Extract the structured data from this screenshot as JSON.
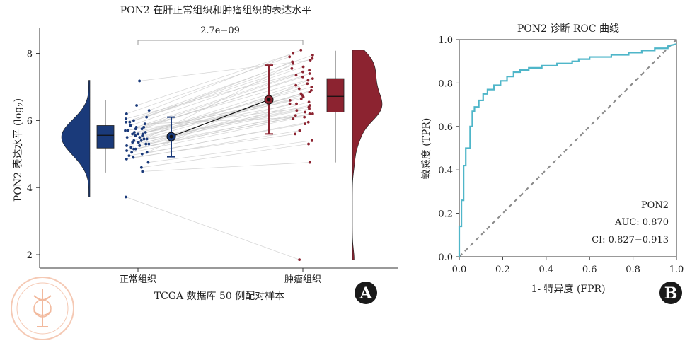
{
  "panel_a": {
    "title": "PON2 在肝正常组织和肿瘤组织的表达水平",
    "xlabel": "TCGA 数据库 50 例配对样本",
    "ylabel": "PON2 表达水平 (log2)",
    "ylabel_main": "PON2 表达水平 (log",
    "ylabel_sub": "2",
    "ylabel_close": ")",
    "pvalue": "2.7e−09",
    "panel_label": "A",
    "colors": {
      "normal": "#1a3a7a",
      "tumor": "#8c2330"
    }
  },
  "panel_b": {
    "title": "PON2 诊断 ROC 曲线",
    "xlabel": "1- 特异度 (FPR)",
    "ylabel": "敏感度 (TPR)",
    "legend_name": "PON2",
    "auc_text": "AUC: 0.870",
    "ci_text": "CI: 0.827−0.913",
    "panel_label": "B",
    "colors": {
      "roc": "#4fb6c9",
      "diagonal": "#888888"
    }
  },
  "chart_data": [
    {
      "type": "scatter",
      "title": "PON2 在肝正常组织和肿瘤组织的表达水平",
      "xlabel": "TCGA 数据库 50 例配对样本",
      "ylabel": "PON2 表达水平 (log2)",
      "categories": [
        "正常组织",
        "肿瘤组织"
      ],
      "ylim": [
        1.6,
        8.75
      ],
      "yticks": [
        2,
        4,
        6,
        8
      ],
      "annotation": "2.7e−09",
      "series": [
        {
          "name": "正常组织",
          "mean": 5.52,
          "err_low": 4.92,
          "err_high": 6.1,
          "box": {
            "min": 4.45,
            "q1": 5.18,
            "median": 5.56,
            "q3": 5.85,
            "max": 6.62
          },
          "values": [
            5.05,
            5.9,
            5.6,
            5.35,
            5.2,
            4.95,
            5.7,
            6.05,
            5.5,
            5.45,
            6.3,
            5.15,
            4.85,
            5.8,
            5.55,
            5.25,
            6.0,
            5.65,
            4.75,
            5.4,
            5.95,
            5.3,
            5.1,
            6.45,
            5.75,
            5.6,
            5.0,
            5.85,
            5.45,
            4.6,
            5.5,
            6.2,
            5.35,
            5.7,
            5.05,
            7.18,
            5.55,
            4.9,
            5.8,
            5.25,
            5.65,
            6.1,
            5.4,
            4.48,
            5.6,
            5.95,
            5.15,
            3.72,
            5.75,
            5.3
          ]
        },
        {
          "name": "肿瘤组织",
          "mean": 6.62,
          "err_low": 5.6,
          "err_high": 7.65,
          "box": {
            "min": 4.75,
            "q1": 6.25,
            "median": 6.72,
            "q3": 7.25,
            "max": 8.08
          },
          "values": [
            7.2,
            6.1,
            6.5,
            7.7,
            6.9,
            5.9,
            6.4,
            7.5,
            7.0,
            6.8,
            8.1,
            6.2,
            5.7,
            7.3,
            6.6,
            6.35,
            7.85,
            6.7,
            5.4,
            7.1,
            7.95,
            6.55,
            6.25,
            8.0,
            7.4,
            6.75,
            5.95,
            7.6,
            6.45,
            5.3,
            6.85,
            7.9,
            6.3,
            7.25,
            6.05,
            7.8,
            6.95,
            5.6,
            7.45,
            6.15,
            6.65,
            7.75,
            6.4,
            4.75,
            7.05,
            7.55,
            6.2,
            1.85,
            7.35,
            6.5
          ]
        }
      ]
    },
    {
      "type": "line",
      "title": "PON2 诊断 ROC 曲线",
      "xlabel": "1- 特异度 (FPR)",
      "ylabel": "敏感度 (TPR)",
      "xlim": [
        0,
        1
      ],
      "ylim": [
        0,
        1
      ],
      "xticks": [
        0.0,
        0.2,
        0.4,
        0.6,
        0.8,
        1.0
      ],
      "yticks": [
        0.0,
        0.2,
        0.4,
        0.6,
        0.8,
        1.0
      ],
      "auc": 0.87,
      "ci": [
        0.827,
        0.913
      ],
      "series": [
        {
          "name": "PON2",
          "x": [
            0.0,
            0.0,
            0.01,
            0.01,
            0.02,
            0.02,
            0.03,
            0.03,
            0.05,
            0.05,
            0.06,
            0.06,
            0.07,
            0.07,
            0.09,
            0.09,
            0.11,
            0.11,
            0.13,
            0.13,
            0.16,
            0.16,
            0.19,
            0.19,
            0.22,
            0.22,
            0.25,
            0.25,
            0.28,
            0.28,
            0.32,
            0.32,
            0.38,
            0.38,
            0.45,
            0.45,
            0.52,
            0.52,
            0.55,
            0.55,
            0.6,
            0.6,
            0.7,
            0.7,
            0.78,
            0.78,
            0.84,
            0.84,
            0.9,
            0.9,
            0.96,
            0.96,
            1.0
          ],
          "y": [
            0.0,
            0.14,
            0.14,
            0.26,
            0.26,
            0.42,
            0.42,
            0.5,
            0.5,
            0.6,
            0.6,
            0.67,
            0.67,
            0.69,
            0.69,
            0.72,
            0.72,
            0.75,
            0.75,
            0.77,
            0.77,
            0.79,
            0.79,
            0.81,
            0.81,
            0.83,
            0.83,
            0.85,
            0.85,
            0.86,
            0.86,
            0.87,
            0.87,
            0.88,
            0.88,
            0.89,
            0.89,
            0.9,
            0.9,
            0.91,
            0.91,
            0.92,
            0.92,
            0.93,
            0.93,
            0.94,
            0.94,
            0.95,
            0.95,
            0.96,
            0.96,
            0.97,
            0.98
          ]
        },
        {
          "name": "",
          "x": [
            0,
            1
          ],
          "y": [
            0,
            1
          ]
        }
      ]
    }
  ]
}
